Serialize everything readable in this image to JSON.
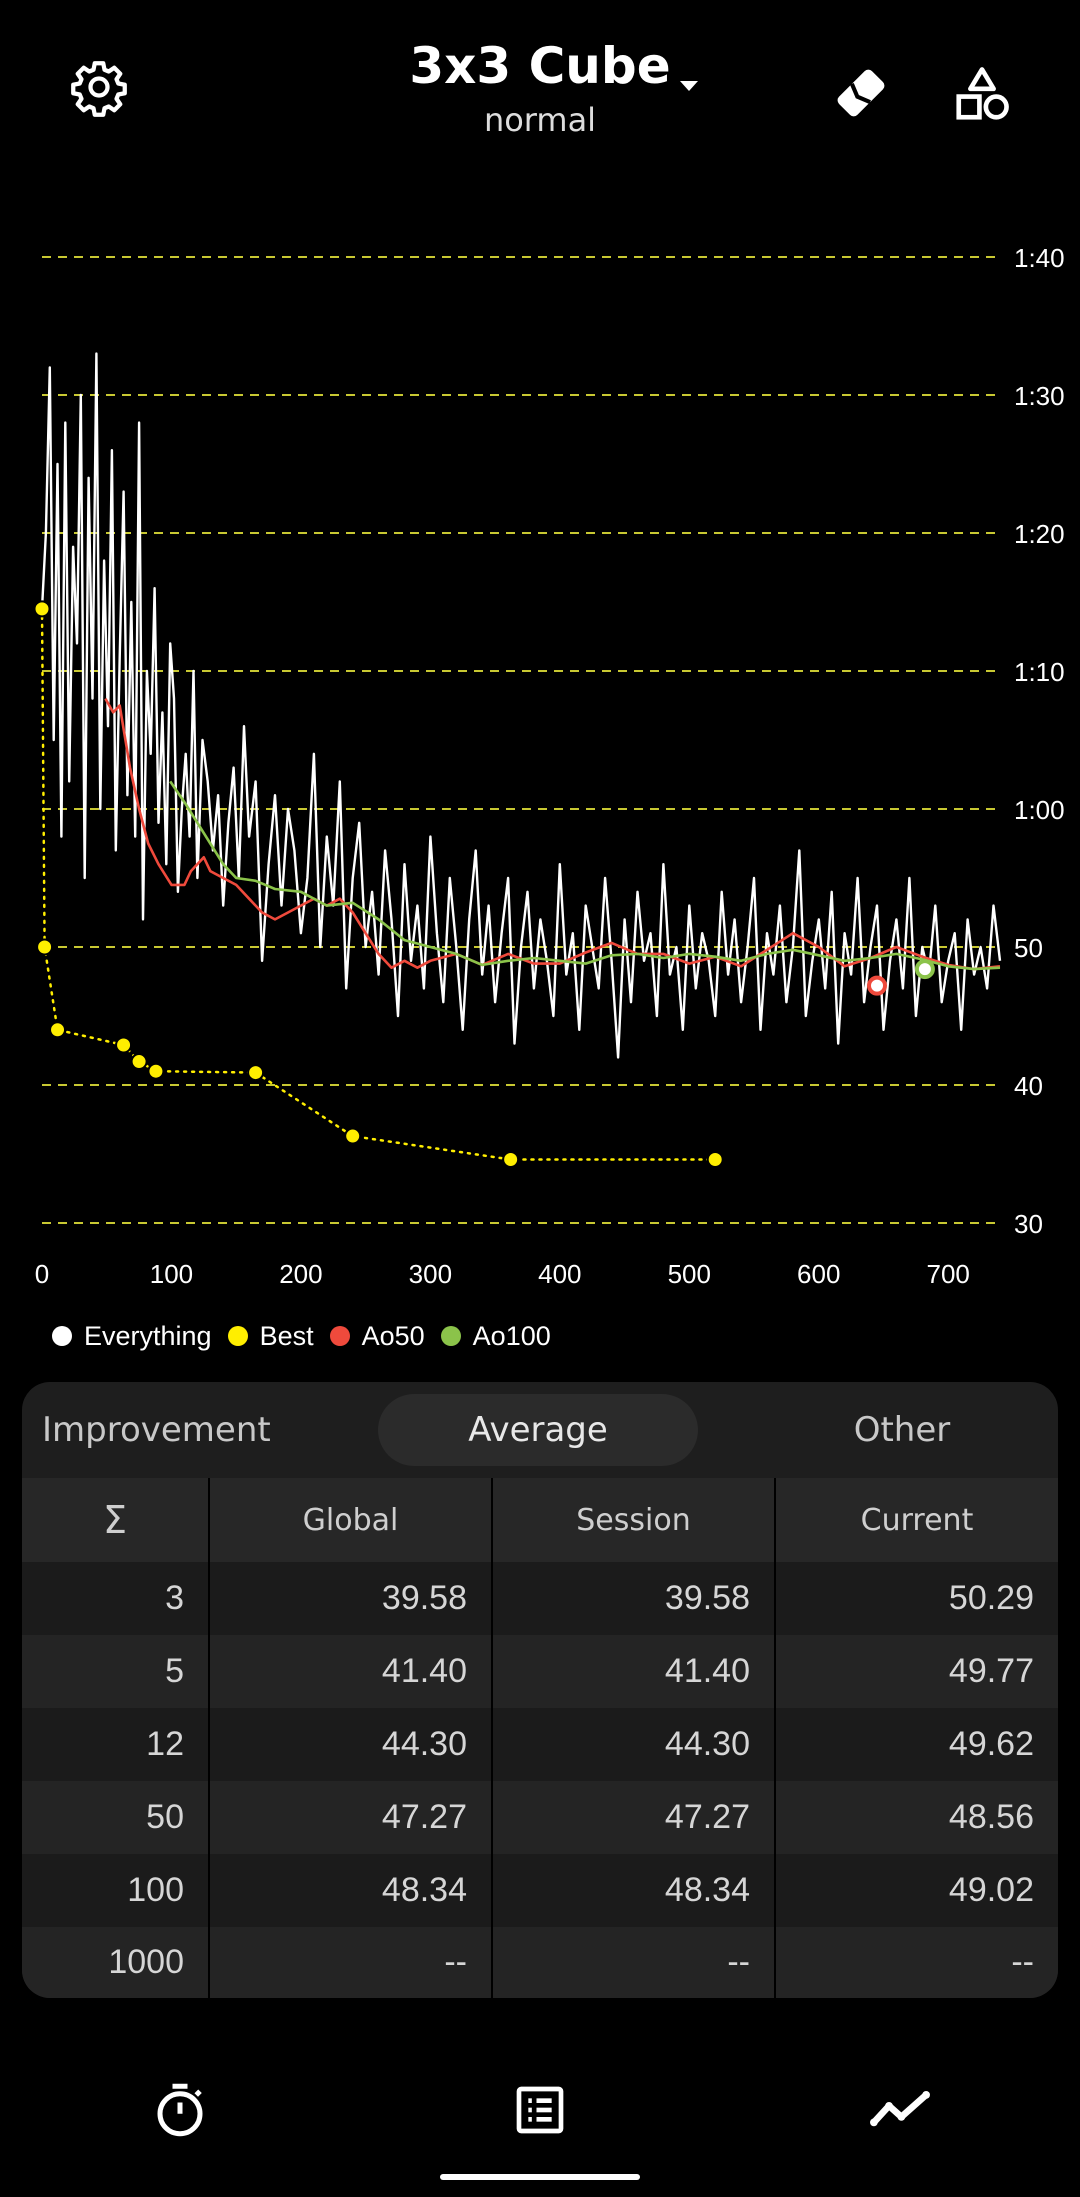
{
  "header": {
    "settings_icon": "gear-icon",
    "title": "3x3 Cube",
    "subtitle": "normal",
    "dropdown_icon": "caret-down-icon",
    "scramble_icon": "tag-icon",
    "shapes_icon": "shapes-icon"
  },
  "colors": {
    "background": "#000000",
    "everything": "#ffffff",
    "best": "#ffee00",
    "ao50": "#ef4a3c",
    "ao100": "#8bc34a",
    "grid": "#c8c832",
    "panel": "#1e1e1e"
  },
  "chart_data": {
    "type": "line",
    "xlim": [
      0,
      740
    ],
    "ylim": [
      30,
      100
    ],
    "x_ticks": [
      0,
      100,
      200,
      300,
      400,
      500,
      600,
      700
    ],
    "x_tick_labels": [
      "0",
      "100",
      "200",
      "300",
      "400",
      "500",
      "600",
      "700"
    ],
    "y_ticks": [
      30,
      40,
      50,
      60,
      70,
      80,
      90,
      100
    ],
    "y_tick_labels": [
      "30",
      "40",
      "50",
      "1:00",
      "1:10",
      "1:20",
      "1:30",
      "1:40"
    ],
    "grid": "horizontal dashed",
    "legend": "bottom-left",
    "series": [
      {
        "name": "Everything",
        "color": "#ffffff",
        "x": [
          0,
          3,
          6,
          9,
          12,
          15,
          18,
          21,
          24,
          27,
          30,
          33,
          36,
          39,
          42,
          45,
          48,
          51,
          54,
          57,
          60,
          63,
          66,
          69,
          72,
          75,
          78,
          81,
          84,
          87,
          90,
          93,
          96,
          99,
          102,
          105,
          108,
          111,
          114,
          117,
          120,
          124,
          128,
          132,
          136,
          140,
          144,
          148,
          152,
          156,
          160,
          165,
          170,
          175,
          180,
          185,
          190,
          195,
          200,
          205,
          210,
          215,
          220,
          225,
          230,
          235,
          240,
          245,
          250,
          255,
          260,
          265,
          270,
          275,
          280,
          285,
          290,
          295,
          300,
          305,
          310,
          315,
          320,
          325,
          330,
          335,
          340,
          345,
          350,
          355,
          360,
          365,
          370,
          375,
          380,
          385,
          390,
          395,
          400,
          405,
          410,
          415,
          420,
          425,
          430,
          435,
          440,
          445,
          450,
          455,
          460,
          465,
          470,
          475,
          480,
          485,
          490,
          495,
          500,
          505,
          510,
          515,
          520,
          525,
          530,
          535,
          540,
          545,
          550,
          555,
          560,
          565,
          570,
          575,
          580,
          585,
          590,
          595,
          600,
          605,
          610,
          615,
          620,
          625,
          630,
          635,
          640,
          645,
          650,
          655,
          660,
          665,
          670,
          675,
          680,
          685,
          690,
          695,
          700,
          705,
          710,
          715,
          720,
          725,
          730,
          735,
          740
        ],
        "values": [
          74.5,
          80,
          92,
          65,
          85,
          58,
          88,
          62,
          79,
          72,
          90,
          55,
          84,
          68,
          93,
          60,
          78,
          66,
          86,
          57,
          71,
          83,
          61,
          75,
          58,
          88,
          52,
          70,
          64,
          76,
          59,
          67,
          56,
          72,
          68,
          54,
          60,
          64,
          58,
          70,
          55,
          65,
          62,
          57,
          61,
          53,
          59,
          63,
          55,
          66,
          58,
          62,
          49,
          56,
          61,
          53,
          60,
          57,
          51,
          55,
          64,
          50,
          58,
          53,
          62,
          47,
          55,
          59,
          50,
          54,
          48,
          57,
          52,
          45,
          56,
          49,
          53,
          47,
          58,
          51,
          46,
          55,
          50,
          44,
          52,
          57,
          48,
          53,
          46,
          51,
          55,
          43,
          50,
          54,
          47,
          52,
          49,
          45,
          56,
          48,
          51,
          44,
          53,
          50,
          47,
          55,
          49,
          42,
          52,
          46,
          54,
          49,
          51,
          45,
          56,
          48,
          50,
          44,
          53,
          47,
          51,
          49,
          45,
          54,
          48,
          52,
          46,
          50,
          55,
          44,
          51,
          48,
          53,
          46,
          50,
          57,
          45,
          49,
          52,
          47,
          54,
          43,
          51,
          48,
          55,
          46,
          50,
          53,
          44,
          49,
          52,
          47,
          55,
          45,
          50,
          48,
          53,
          46,
          49,
          51,
          44,
          52,
          48,
          50,
          47,
          53,
          49
        ]
      },
      {
        "name": "Best",
        "color": "#ffee00",
        "x": [
          0,
          2,
          12,
          63,
          75,
          88,
          165,
          240,
          362,
          520
        ],
        "values": [
          74.5,
          50.0,
          44.0,
          42.9,
          41.7,
          41.0,
          40.9,
          36.3,
          34.6,
          34.6
        ]
      },
      {
        "name": "Ao50",
        "color": "#ef4a3c",
        "x": [
          49,
          55,
          60,
          68,
          75,
          82,
          90,
          100,
          110,
          115,
          125,
          130,
          140,
          150,
          160,
          170,
          180,
          190,
          200,
          210,
          220,
          230,
          240,
          250,
          260,
          270,
          280,
          290,
          300,
          320,
          340,
          360,
          380,
          400,
          420,
          440,
          460,
          480,
          500,
          520,
          540,
          560,
          580,
          600,
          620,
          640,
          660,
          680,
          700,
          720,
          740
        ],
        "values": [
          68.0,
          67.0,
          67.5,
          63.0,
          60.0,
          57.5,
          56.0,
          54.5,
          54.5,
          55.5,
          56.5,
          55.5,
          55.0,
          54.5,
          53.5,
          52.5,
          52.0,
          52.5,
          53.0,
          53.5,
          53.0,
          53.5,
          52.5,
          51.0,
          49.5,
          48.5,
          49.0,
          48.5,
          49.0,
          49.5,
          48.7,
          49.5,
          48.8,
          48.8,
          49.6,
          50.3,
          49.5,
          49.5,
          48.8,
          49.3,
          48.6,
          49.8,
          51.0,
          50.0,
          48.6,
          49.2,
          50.0,
          49.3,
          48.7,
          48.4,
          48.6
        ]
      },
      {
        "name": "Ao100",
        "color": "#8bc34a",
        "x": [
          99,
          110,
          120,
          130,
          140,
          150,
          165,
          180,
          200,
          220,
          240,
          260,
          280,
          300,
          320,
          340,
          360,
          380,
          400,
          420,
          440,
          460,
          480,
          500,
          520,
          540,
          560,
          580,
          600,
          620,
          640,
          660,
          680,
          700,
          720,
          740
        ],
        "values": [
          62.0,
          60.5,
          59.0,
          57.5,
          56.0,
          55.0,
          54.8,
          54.2,
          54.0,
          53.0,
          53.2,
          52.0,
          50.5,
          50.0,
          49.5,
          48.7,
          49.0,
          49.2,
          49.0,
          48.8,
          49.4,
          49.5,
          49.2,
          49.5,
          49.3,
          49.0,
          49.5,
          49.8,
          49.4,
          49.0,
          49.2,
          49.5,
          49.1,
          48.6,
          48.4,
          48.5
        ]
      }
    ],
    "markers": [
      {
        "series": "Ao50",
        "x": 645,
        "value": 47.2
      },
      {
        "series": "Ao100",
        "x": 682,
        "value": 48.4
      }
    ]
  },
  "legend": [
    {
      "label": "Everything",
      "color": "#ffffff"
    },
    {
      "label": "Best",
      "color": "#ffee00"
    },
    {
      "label": "Ao50",
      "color": "#ef4a3c"
    },
    {
      "label": "Ao100",
      "color": "#8bc34a"
    }
  ],
  "tabs": [
    {
      "label": "Improvement",
      "active": false
    },
    {
      "label": "Average",
      "active": true
    },
    {
      "label": "Other",
      "active": false
    }
  ],
  "table": {
    "headers": [
      "Σ",
      "Global",
      "Session",
      "Current"
    ],
    "rows": [
      [
        "3",
        "39.58",
        "39.58",
        "50.29"
      ],
      [
        "5",
        "41.40",
        "41.40",
        "49.77"
      ],
      [
        "12",
        "44.30",
        "44.30",
        "49.62"
      ],
      [
        "50",
        "47.27",
        "47.27",
        "48.56"
      ],
      [
        "100",
        "48.34",
        "48.34",
        "49.02"
      ],
      [
        "1000",
        "--",
        "--",
        "--"
      ]
    ]
  },
  "nav": [
    {
      "name": "timer",
      "icon": "stopwatch-icon"
    },
    {
      "name": "list",
      "icon": "list-icon"
    },
    {
      "name": "stats",
      "icon": "trend-line-icon"
    }
  ]
}
